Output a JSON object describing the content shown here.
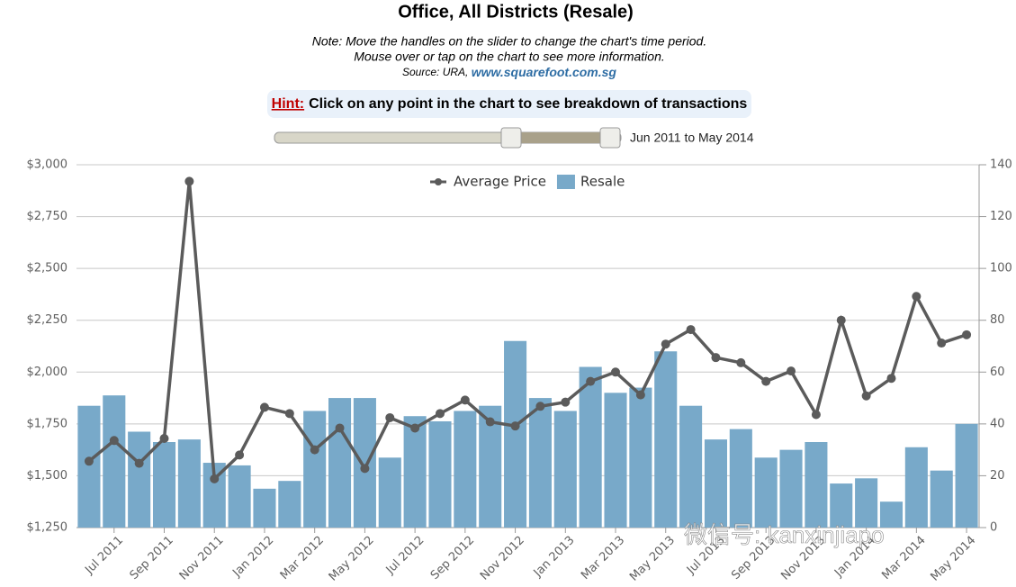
{
  "chart_data": {
    "type": "bar",
    "title": "Office, All Districts (Resale)",
    "note": [
      "Note: Move the handles on the slider to change the chart's time period.",
      "Mouse over or tap on the chart to see more information."
    ],
    "source": "Source: URA, ",
    "source_link": "www.squarefoot.com.sg",
    "hint_label": "Hint:",
    "hint": "Click on any point in the chart to see breakdown of transactions",
    "range_label": "Jun 2011 to May 2014",
    "watermark": "微信号: kanxinjiapo",
    "categories": [
      null,
      "Jul 2011",
      null,
      "Sep 2011",
      null,
      "Nov 2011",
      null,
      "Jan 2012",
      null,
      "Mar 2012",
      null,
      "May 2012",
      null,
      "Jul 2012",
      null,
      "Sep 2012",
      null,
      "Nov 2012",
      null,
      "Jan 2013",
      null,
      "Mar 2013",
      null,
      "May 2013",
      null,
      "Jul 2013",
      null,
      "Sep 2013",
      null,
      "Nov 2013",
      null,
      "Jan 2014",
      null,
      "Mar 2014",
      null,
      "May 2014"
    ],
    "series": [
      {
        "name": "Resale",
        "type": "bar",
        "axis": "y2",
        "color": "#78a9c9",
        "values": [
          47,
          51,
          37,
          33,
          34,
          25,
          24,
          15,
          18,
          45,
          50,
          50,
          27,
          43,
          41,
          45,
          47,
          72,
          50,
          45,
          62,
          52,
          54,
          68,
          47,
          34,
          38,
          27,
          30,
          33,
          17,
          19,
          10,
          31,
          22,
          40
        ]
      },
      {
        "name": "Average Price",
        "type": "line",
        "axis": "y",
        "color": "#5b5b5b",
        "values": [
          1570,
          1670,
          1560,
          1680,
          2920,
          1485,
          1600,
          1830,
          1800,
          1625,
          1730,
          1535,
          1780,
          1730,
          1800,
          1865,
          1760,
          1740,
          1835,
          1855,
          1955,
          2000,
          1890,
          2135,
          2205,
          2070,
          2045,
          1955,
          2005,
          1795,
          2250,
          1885,
          1970,
          2365,
          2140,
          2180
        ]
      }
    ],
    "ylim": [
      1250,
      3000
    ],
    "yticks": [
      {
        "value": 1250,
        "label": "$1,250"
      },
      {
        "value": 1500,
        "label": "$1,500"
      },
      {
        "value": 1750,
        "label": "$1,750"
      },
      {
        "value": 2000,
        "label": "$2,000"
      },
      {
        "value": 2250,
        "label": "$2,250"
      },
      {
        "value": 2500,
        "label": "$2,500"
      },
      {
        "value": 2750,
        "label": "$2,750"
      },
      {
        "value": 3000,
        "label": "$3,000"
      }
    ],
    "y2lim": [
      0,
      140
    ],
    "y2ticks": [
      0,
      20,
      40,
      60,
      80,
      100,
      120,
      140
    ],
    "grid": true,
    "legend": "top"
  }
}
